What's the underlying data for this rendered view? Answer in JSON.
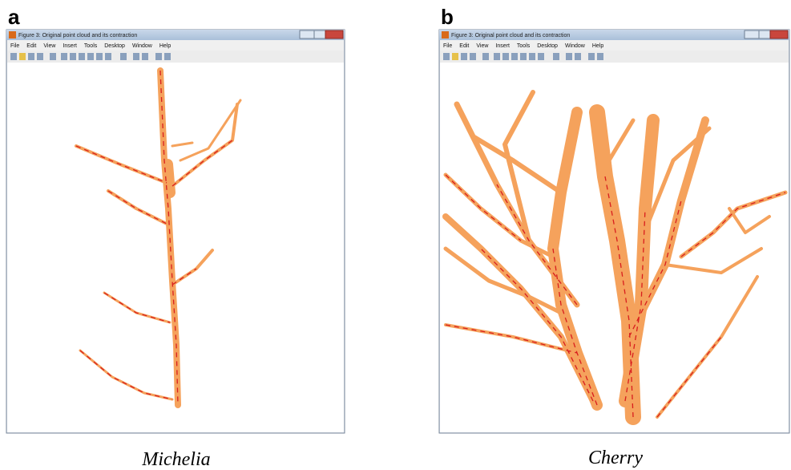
{
  "panels": [
    {
      "label": "a",
      "window": {
        "title": "Figure 3: Original point cloud and its contraction",
        "menu": [
          "File",
          "Edit",
          "View",
          "Insert",
          "Tools",
          "Desktop",
          "Window",
          "Help"
        ]
      },
      "caption": "Michelia"
    },
    {
      "label": "b",
      "window": {
        "title": "Figure 3: Original point cloud and its contraction",
        "menu": [
          "File",
          "Edit",
          "View",
          "Insert",
          "Tools",
          "Desktop",
          "Window",
          "Help"
        ]
      },
      "caption": "Cherry"
    }
  ]
}
